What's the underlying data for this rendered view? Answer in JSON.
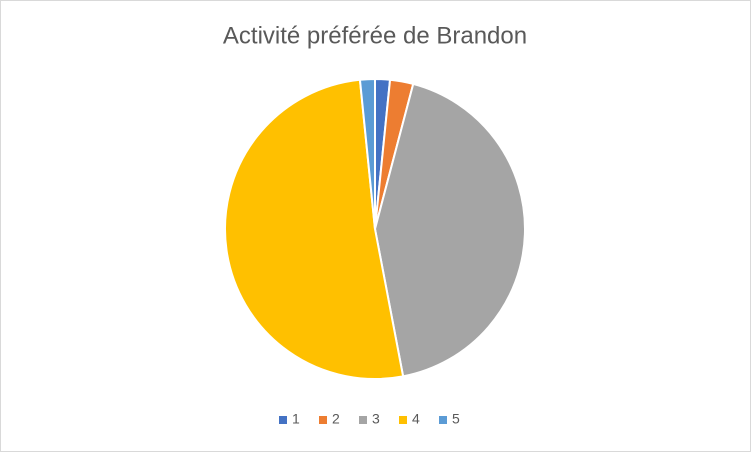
{
  "chart_data": {
    "type": "pie",
    "title": "Activité préférée de Brandon",
    "categories": [
      "1",
      "2",
      "3",
      "4",
      "5"
    ],
    "values": [
      1.6,
      2.5,
      42.9,
      51.4,
      1.6
    ],
    "colors": [
      "#4472c4",
      "#ed7d31",
      "#a5a5a5",
      "#ffc000",
      "#5b9bd5"
    ],
    "legend": "bottom"
  }
}
